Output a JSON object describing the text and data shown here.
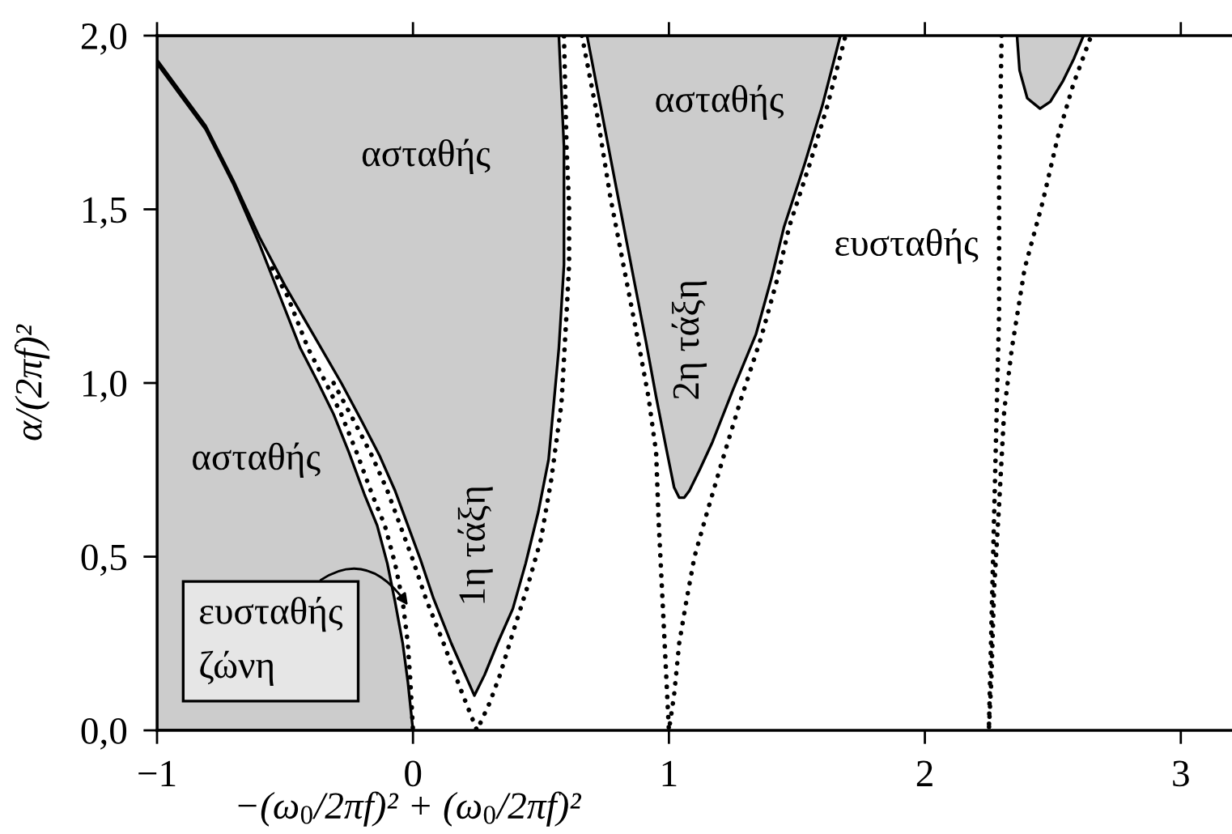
{
  "chart_data": {
    "type": "line",
    "line_style": "dotted",
    "xlabel": "−(ω$_{0}$/2πf)² + (ω$_{0}$/2πf)²",
    "ylabel": "α/(2πf)²",
    "xlim": [
      -1,
      3.2
    ],
    "ylim": [
      0,
      2
    ],
    "xticks": [
      {
        "value": -1,
        "label": "−1"
      },
      0,
      1,
      2,
      3
    ],
    "yticks": [
      {
        "value": 0,
        "label": "0,0"
      },
      {
        "value": 0.5,
        "label": "0,5"
      },
      {
        "value": 1,
        "label": "1,0"
      },
      {
        "value": 1.5,
        "label": "1,5"
      },
      {
        "value": 2,
        "label": "2,0"
      }
    ],
    "series": [
      {
        "type": "area",
        "color": "#cccccc",
        "x": [
          -1.0,
          -0.9,
          -0.81,
          -0.7,
          -0.6,
          -0.52,
          -0.44,
          -0.37,
          -0.31,
          -0.25,
          -0.19,
          -0.14,
          -0.1,
          -0.07,
          -0.04,
          -0.02,
          -0.01,
          0.0,
          -1.0
        ],
        "values": [
          1.92,
          1.82,
          1.73,
          1.57,
          1.4,
          1.25,
          1.1,
          1.0,
          0.91,
          0.8,
          0.68,
          0.59,
          0.48,
          0.37,
          0.25,
          0.14,
          0.07,
          0.0,
          0.0
        ]
      },
      {
        "type": "area",
        "color": "#cccccc",
        "x": [
          -1.0,
          -0.9,
          -0.81,
          -0.7,
          -0.6,
          -0.5,
          -0.39,
          -0.28,
          -0.2,
          -0.13,
          -0.07,
          -0.02,
          0.03,
          0.08,
          0.15,
          0.24,
          0.28,
          0.33,
          0.39,
          0.44,
          0.49,
          0.53,
          0.55,
          0.57,
          0.59,
          0.59,
          0.57,
          -1.0
        ],
        "values": [
          1.93,
          1.83,
          1.74,
          1.58,
          1.42,
          1.28,
          1.14,
          1.0,
          0.89,
          0.79,
          0.69,
          0.59,
          0.49,
          0.38,
          0.25,
          0.1,
          0.16,
          0.25,
          0.35,
          0.48,
          0.63,
          0.78,
          0.94,
          1.1,
          1.34,
          1.68,
          2.0,
          2.0
        ]
      },
      {
        "type": "area",
        "color": "#cccccc",
        "x": [
          0.68,
          0.74,
          0.8,
          0.86,
          0.91,
          0.95,
          0.99,
          1.02,
          1.04,
          1.06,
          1.08,
          1.12,
          1.17,
          1.25,
          1.34,
          1.4,
          1.45,
          1.53,
          1.6,
          1.67
        ],
        "values": [
          2.0,
          1.77,
          1.54,
          1.31,
          1.12,
          0.96,
          0.81,
          0.7,
          0.67,
          0.67,
          0.69,
          0.75,
          0.83,
          0.98,
          1.14,
          1.3,
          1.45,
          1.63,
          1.8,
          2.0
        ]
      },
      {
        "type": "area",
        "color": "#cccccc",
        "x": [
          2.36,
          2.37,
          2.4,
          2.45,
          2.49,
          2.54,
          2.58,
          2.62
        ],
        "values": [
          2.0,
          1.9,
          1.82,
          1.79,
          1.81,
          1.87,
          1.93,
          2.0
        ]
      },
      {
        "color": "#000000",
        "x": [
          -0.55,
          -0.49,
          -0.41,
          -0.34,
          -0.28,
          -0.22,
          -0.16,
          -0.11,
          -0.07,
          -0.04,
          -0.02,
          -0.01,
          0.0
        ],
        "values": [
          1.33,
          1.25,
          1.1,
          1.0,
          0.91,
          0.8,
          0.68,
          0.59,
          0.48,
          0.37,
          0.25,
          0.14,
          0.0
        ]
      },
      {
        "color": "#000000",
        "x": [
          -0.31,
          -0.23,
          -0.16,
          -0.1,
          -0.05,
          0.0,
          0.05,
          0.12,
          0.18,
          0.25,
          0.3,
          0.34,
          0.39,
          0.45,
          0.5,
          0.54,
          0.58,
          0.6,
          0.61,
          0.61,
          0.6,
          0.59
        ],
        "values": [
          1.0,
          0.89,
          0.79,
          0.69,
          0.59,
          0.49,
          0.38,
          0.25,
          0.13,
          0.0,
          0.08,
          0.16,
          0.28,
          0.42,
          0.55,
          0.72,
          0.94,
          1.2,
          1.34,
          1.51,
          1.68,
          2.0
        ]
      },
      {
        "color": "#000000",
        "x": [
          0.66,
          0.72,
          0.77,
          0.83,
          0.88,
          0.92,
          0.95,
          0.96,
          0.97,
          0.98,
          0.99,
          1.0,
          1.02,
          1.04,
          1.07,
          1.1,
          1.15,
          1.21,
          1.28,
          1.36,
          1.42,
          1.47,
          1.55,
          1.62,
          1.69
        ],
        "values": [
          2.0,
          1.77,
          1.54,
          1.31,
          1.12,
          0.96,
          0.8,
          0.6,
          0.45,
          0.3,
          0.15,
          0.0,
          0.1,
          0.25,
          0.38,
          0.5,
          0.63,
          0.78,
          0.95,
          1.13,
          1.29,
          1.45,
          1.63,
          1.8,
          2.0
        ]
      },
      {
        "color": "#000000",
        "x": [
          2.3,
          2.29,
          2.29,
          2.28,
          2.27,
          2.26,
          2.25,
          2.26,
          2.27,
          2.29,
          2.31,
          2.34,
          2.39,
          2.46,
          2.52,
          2.58,
          2.65
        ],
        "values": [
          2.0,
          1.6,
          1.2,
          0.9,
          0.6,
          0.3,
          0.0,
          0.15,
          0.4,
          0.65,
          0.92,
          1.1,
          1.33,
          1.52,
          1.71,
          1.86,
          2.0
        ]
      }
    ],
    "annotations": [
      "ασταθής",
      "ασταθής",
      "ασταθής",
      "ευσταθής",
      "1η τάξη",
      "2η τάξη",
      {
        "text": "ευσταθής\nζώνη",
        "x": -0.02,
        "y": 0.36
      }
    ]
  }
}
